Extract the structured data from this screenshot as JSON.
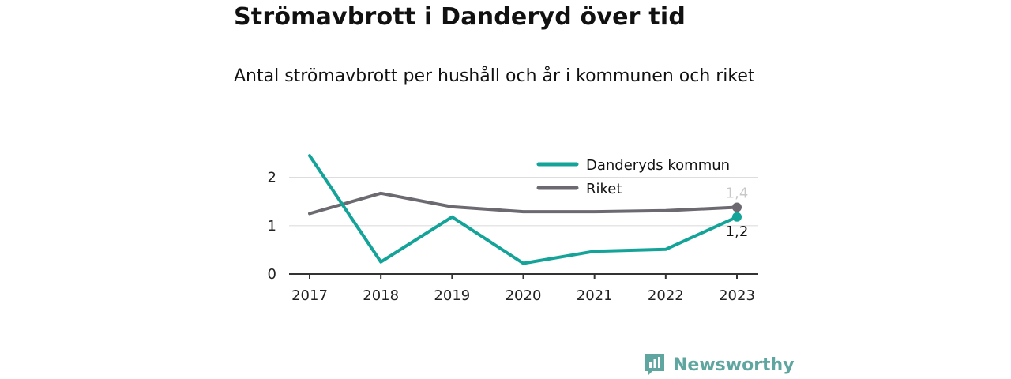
{
  "title": "Strömavbrott i Danderyd över tid",
  "subtitle": "Antal strömavbrott per hushåll och år i kommunen och riket",
  "brand": "Newsworthy",
  "chart_data": {
    "type": "line",
    "x": [
      "2017",
      "2018",
      "2019",
      "2020",
      "2021",
      "2022",
      "2023"
    ],
    "ylim": [
      0,
      2.5
    ],
    "yticks": [
      0,
      1,
      2
    ],
    "grid": true,
    "legend_position": "top-right",
    "series": [
      {
        "name": "Danderyds kommun",
        "color": "#14a398",
        "values": [
          2.45,
          0.25,
          1.18,
          0.22,
          0.47,
          0.51,
          1.18
        ],
        "end_label": "1,2"
      },
      {
        "name": "Riket",
        "color": "#6c6a70",
        "values": [
          1.25,
          1.67,
          1.39,
          1.29,
          1.29,
          1.31,
          1.38
        ],
        "end_label": "1,4"
      }
    ]
  }
}
